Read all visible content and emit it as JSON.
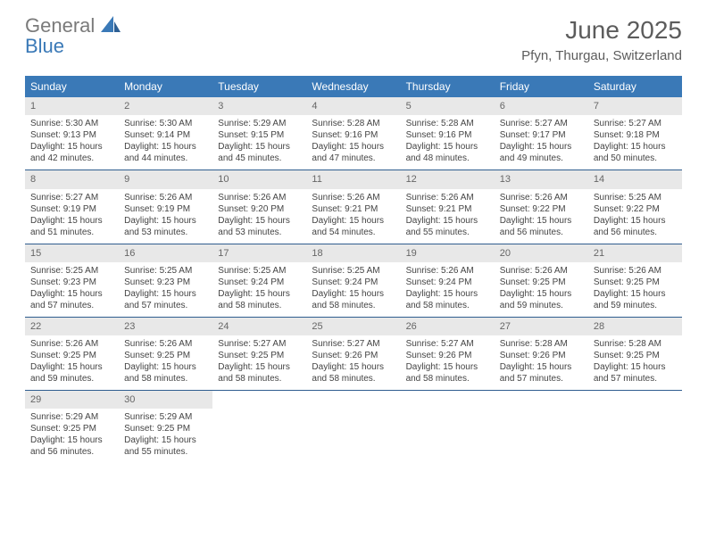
{
  "logo": {
    "word1": "General",
    "word2": "Blue"
  },
  "title": "June 2025",
  "location": "Pfyn, Thurgau, Switzerland",
  "colors": {
    "header_bar": "#3a79b7",
    "header_text": "#ffffff",
    "daynum_bg": "#e8e8e8",
    "week_border": "#2f5d8f",
    "body_text": "#444444",
    "title_text": "#5c5c5c",
    "logo_gray": "#7a7a7a",
    "logo_blue": "#3a79b7"
  },
  "daysOfWeek": [
    "Sunday",
    "Monday",
    "Tuesday",
    "Wednesday",
    "Thursday",
    "Friday",
    "Saturday"
  ],
  "weeks": [
    [
      {
        "n": "1",
        "sr": "Sunrise: 5:30 AM",
        "ss": "Sunset: 9:13 PM",
        "dl": "Daylight: 15 hours and 42 minutes."
      },
      {
        "n": "2",
        "sr": "Sunrise: 5:30 AM",
        "ss": "Sunset: 9:14 PM",
        "dl": "Daylight: 15 hours and 44 minutes."
      },
      {
        "n": "3",
        "sr": "Sunrise: 5:29 AM",
        "ss": "Sunset: 9:15 PM",
        "dl": "Daylight: 15 hours and 45 minutes."
      },
      {
        "n": "4",
        "sr": "Sunrise: 5:28 AM",
        "ss": "Sunset: 9:16 PM",
        "dl": "Daylight: 15 hours and 47 minutes."
      },
      {
        "n": "5",
        "sr": "Sunrise: 5:28 AM",
        "ss": "Sunset: 9:16 PM",
        "dl": "Daylight: 15 hours and 48 minutes."
      },
      {
        "n": "6",
        "sr": "Sunrise: 5:27 AM",
        "ss": "Sunset: 9:17 PM",
        "dl": "Daylight: 15 hours and 49 minutes."
      },
      {
        "n": "7",
        "sr": "Sunrise: 5:27 AM",
        "ss": "Sunset: 9:18 PM",
        "dl": "Daylight: 15 hours and 50 minutes."
      }
    ],
    [
      {
        "n": "8",
        "sr": "Sunrise: 5:27 AM",
        "ss": "Sunset: 9:19 PM",
        "dl": "Daylight: 15 hours and 51 minutes."
      },
      {
        "n": "9",
        "sr": "Sunrise: 5:26 AM",
        "ss": "Sunset: 9:19 PM",
        "dl": "Daylight: 15 hours and 53 minutes."
      },
      {
        "n": "10",
        "sr": "Sunrise: 5:26 AM",
        "ss": "Sunset: 9:20 PM",
        "dl": "Daylight: 15 hours and 53 minutes."
      },
      {
        "n": "11",
        "sr": "Sunrise: 5:26 AM",
        "ss": "Sunset: 9:21 PM",
        "dl": "Daylight: 15 hours and 54 minutes."
      },
      {
        "n": "12",
        "sr": "Sunrise: 5:26 AM",
        "ss": "Sunset: 9:21 PM",
        "dl": "Daylight: 15 hours and 55 minutes."
      },
      {
        "n": "13",
        "sr": "Sunrise: 5:26 AM",
        "ss": "Sunset: 9:22 PM",
        "dl": "Daylight: 15 hours and 56 minutes."
      },
      {
        "n": "14",
        "sr": "Sunrise: 5:25 AM",
        "ss": "Sunset: 9:22 PM",
        "dl": "Daylight: 15 hours and 56 minutes."
      }
    ],
    [
      {
        "n": "15",
        "sr": "Sunrise: 5:25 AM",
        "ss": "Sunset: 9:23 PM",
        "dl": "Daylight: 15 hours and 57 minutes."
      },
      {
        "n": "16",
        "sr": "Sunrise: 5:25 AM",
        "ss": "Sunset: 9:23 PM",
        "dl": "Daylight: 15 hours and 57 minutes."
      },
      {
        "n": "17",
        "sr": "Sunrise: 5:25 AM",
        "ss": "Sunset: 9:24 PM",
        "dl": "Daylight: 15 hours and 58 minutes."
      },
      {
        "n": "18",
        "sr": "Sunrise: 5:25 AM",
        "ss": "Sunset: 9:24 PM",
        "dl": "Daylight: 15 hours and 58 minutes."
      },
      {
        "n": "19",
        "sr": "Sunrise: 5:26 AM",
        "ss": "Sunset: 9:24 PM",
        "dl": "Daylight: 15 hours and 58 minutes."
      },
      {
        "n": "20",
        "sr": "Sunrise: 5:26 AM",
        "ss": "Sunset: 9:25 PM",
        "dl": "Daylight: 15 hours and 59 minutes."
      },
      {
        "n": "21",
        "sr": "Sunrise: 5:26 AM",
        "ss": "Sunset: 9:25 PM",
        "dl": "Daylight: 15 hours and 59 minutes."
      }
    ],
    [
      {
        "n": "22",
        "sr": "Sunrise: 5:26 AM",
        "ss": "Sunset: 9:25 PM",
        "dl": "Daylight: 15 hours and 59 minutes."
      },
      {
        "n": "23",
        "sr": "Sunrise: 5:26 AM",
        "ss": "Sunset: 9:25 PM",
        "dl": "Daylight: 15 hours and 58 minutes."
      },
      {
        "n": "24",
        "sr": "Sunrise: 5:27 AM",
        "ss": "Sunset: 9:25 PM",
        "dl": "Daylight: 15 hours and 58 minutes."
      },
      {
        "n": "25",
        "sr": "Sunrise: 5:27 AM",
        "ss": "Sunset: 9:26 PM",
        "dl": "Daylight: 15 hours and 58 minutes."
      },
      {
        "n": "26",
        "sr": "Sunrise: 5:27 AM",
        "ss": "Sunset: 9:26 PM",
        "dl": "Daylight: 15 hours and 58 minutes."
      },
      {
        "n": "27",
        "sr": "Sunrise: 5:28 AM",
        "ss": "Sunset: 9:26 PM",
        "dl": "Daylight: 15 hours and 57 minutes."
      },
      {
        "n": "28",
        "sr": "Sunrise: 5:28 AM",
        "ss": "Sunset: 9:25 PM",
        "dl": "Daylight: 15 hours and 57 minutes."
      }
    ],
    [
      {
        "n": "29",
        "sr": "Sunrise: 5:29 AM",
        "ss": "Sunset: 9:25 PM",
        "dl": "Daylight: 15 hours and 56 minutes."
      },
      {
        "n": "30",
        "sr": "Sunrise: 5:29 AM",
        "ss": "Sunset: 9:25 PM",
        "dl": "Daylight: 15 hours and 55 minutes."
      },
      null,
      null,
      null,
      null,
      null
    ]
  ]
}
